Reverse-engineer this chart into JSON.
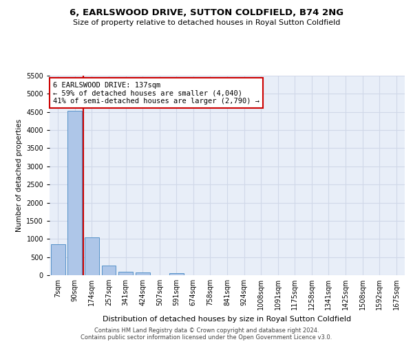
{
  "title": "6, EARLSWOOD DRIVE, SUTTON COLDFIELD, B74 2NG",
  "subtitle": "Size of property relative to detached houses in Royal Sutton Coldfield",
  "xlabel": "Distribution of detached houses by size in Royal Sutton Coldfield",
  "ylabel": "Number of detached properties",
  "footnote1": "Contains HM Land Registry data © Crown copyright and database right 2024.",
  "footnote2": "Contains public sector information licensed under the Open Government Licence v3.0.",
  "bar_labels": [
    "7sqm",
    "90sqm",
    "174sqm",
    "257sqm",
    "341sqm",
    "424sqm",
    "507sqm",
    "591sqm",
    "674sqm",
    "758sqm",
    "841sqm",
    "924sqm",
    "1008sqm",
    "1091sqm",
    "1175sqm",
    "1258sqm",
    "1341sqm",
    "1425sqm",
    "1508sqm",
    "1592sqm",
    "1675sqm"
  ],
  "bar_values": [
    850,
    4540,
    1050,
    270,
    90,
    75,
    5,
    60,
    5,
    0,
    0,
    0,
    0,
    0,
    0,
    0,
    0,
    0,
    0,
    0,
    0
  ],
  "bar_color": "#aec6e8",
  "bar_edge_color": "#5591c8",
  "grid_color": "#d0d8e8",
  "background_color": "#e8eef8",
  "property_line_color": "#cc0000",
  "property_line_x": 1.5,
  "annotation_text": "6 EARLSWOOD DRIVE: 137sqm\n← 59% of detached houses are smaller (4,040)\n41% of semi-detached houses are larger (2,790) →",
  "annotation_box_facecolor": "#ffffff",
  "annotation_box_edgecolor": "#cc0000",
  "ylim": [
    0,
    5500
  ],
  "yticks": [
    0,
    500,
    1000,
    1500,
    2000,
    2500,
    3000,
    3500,
    4000,
    4500,
    5000,
    5500
  ],
  "title_fontsize": 9.5,
  "subtitle_fontsize": 8,
  "ylabel_fontsize": 7.5,
  "xlabel_fontsize": 8,
  "tick_fontsize": 7,
  "annotation_fontsize": 7.5,
  "footnote_fontsize": 6
}
